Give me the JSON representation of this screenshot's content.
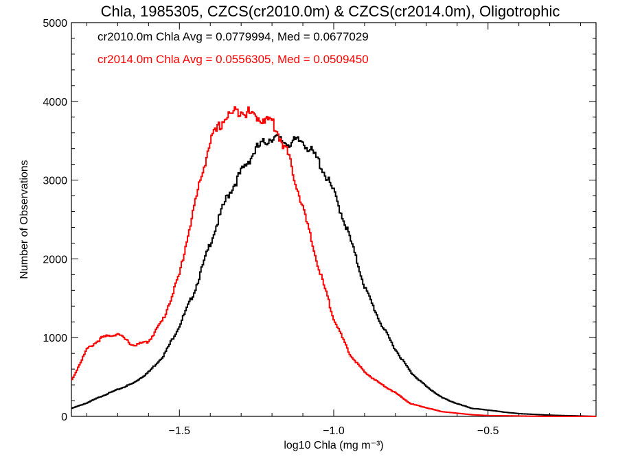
{
  "chart_data": {
    "type": "line",
    "title": "Chla, 1985305, CZCS(cr2010.0m) & CZCS(cr2014.0m), Oligotrophic",
    "xlabel": "log10 Chla (mg m⁻³)",
    "ylabel": "Number of Observations",
    "xlim": [
      -1.85,
      -0.15
    ],
    "ylim": [
      0,
      5000
    ],
    "x_ticks": [
      -1.5,
      -1.0,
      -0.5
    ],
    "x_tick_labels": [
      "−1.5",
      "−1.0",
      "−0.5"
    ],
    "y_ticks": [
      0,
      1000,
      2000,
      3000,
      4000,
      5000
    ],
    "y_tick_labels": [
      "0",
      "1000",
      "2000",
      "3000",
      "4000",
      "5000"
    ],
    "grid": false,
    "annotations": [
      {
        "text": "cr2010.0m Chla Avg = 0.0779994, Med = 0.0677029",
        "color": "#000000"
      },
      {
        "text": "cr2014.0m Chla Avg = 0.0556305, Med = 0.0509450",
        "color": "#ff0000"
      }
    ],
    "series": [
      {
        "color": "#000000",
        "x": [
          -1.85,
          -1.8,
          -1.75,
          -1.7,
          -1.65,
          -1.6,
          -1.55,
          -1.5,
          -1.45,
          -1.4,
          -1.35,
          -1.3,
          -1.25,
          -1.2,
          -1.15,
          -1.1,
          -1.05,
          -1.0,
          -0.95,
          -0.9,
          -0.85,
          -0.8,
          -0.75,
          -0.7,
          -0.65,
          -0.6,
          -0.55,
          -0.5,
          -0.45,
          -0.4,
          -0.35,
          -0.3,
          -0.25,
          -0.2,
          -0.15
        ],
        "values": [
          100,
          170,
          260,
          340,
          420,
          560,
          780,
          1150,
          1600,
          2200,
          2750,
          3100,
          3400,
          3550,
          3470,
          3500,
          3250,
          2850,
          2300,
          1650,
          1200,
          850,
          560,
          380,
          240,
          160,
          100,
          80,
          55,
          35,
          25,
          15,
          10,
          5,
          0
        ]
      },
      {
        "color": "#ff0000",
        "x": [
          -1.85,
          -1.8,
          -1.75,
          -1.7,
          -1.65,
          -1.6,
          -1.55,
          -1.5,
          -1.45,
          -1.4,
          -1.35,
          -1.3,
          -1.25,
          -1.2,
          -1.15,
          -1.1,
          -1.05,
          -1.0,
          -0.95,
          -0.9,
          -0.85,
          -0.8,
          -0.75,
          -0.7,
          -0.65,
          -0.6,
          -0.55,
          -0.5,
          -0.45,
          -0.4,
          -0.35,
          -0.3,
          -0.25,
          -0.2,
          -0.15
        ],
        "values": [
          450,
          850,
          1000,
          1050,
          900,
          950,
          1250,
          1800,
          2700,
          3500,
          3800,
          3900,
          3800,
          3750,
          3350,
          2650,
          1900,
          1250,
          800,
          560,
          420,
          300,
          160,
          110,
          60,
          40,
          20,
          10,
          8,
          5,
          2,
          1,
          0,
          0,
          0
        ]
      }
    ]
  }
}
